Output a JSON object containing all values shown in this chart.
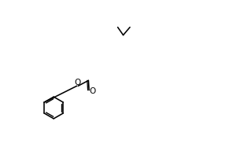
{
  "bg": "#ffffff",
  "lw": 1.2,
  "lw_double": 0.7,
  "figsize": [
    3.1,
    1.92
  ],
  "dpi": 100
}
